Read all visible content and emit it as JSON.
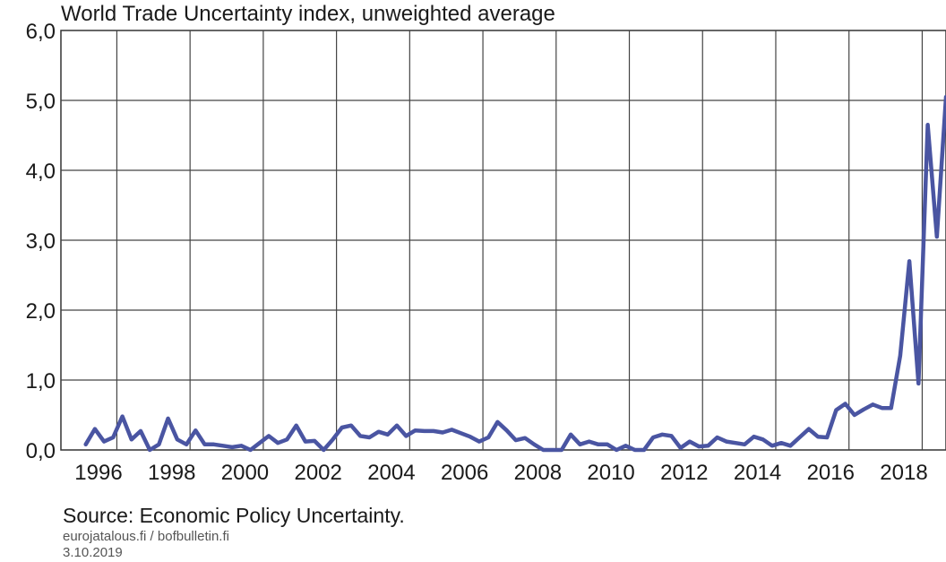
{
  "chart_data": {
    "type": "line",
    "title": "World Trade Uncertainty index, unweighted average",
    "xlabel": "",
    "ylabel": "",
    "ylim": [
      0,
      6
    ],
    "y_ticks": [
      "0,0",
      "1,0",
      "2,0",
      "3,0",
      "4,0",
      "5,0",
      "6,0"
    ],
    "x_ticks": [
      "1996",
      "1998",
      "2000",
      "2002",
      "2004",
      "2006",
      "2008",
      "2010",
      "2012",
      "2014",
      "2016",
      "2018"
    ],
    "grid": true,
    "line_color": "#4a55a2",
    "series": [
      {
        "x": [
          "1996Q1",
          "1996Q2",
          "1996Q3",
          "1996Q4",
          "1997Q1",
          "1997Q2",
          "1997Q3",
          "1997Q4",
          "1998Q1",
          "1998Q2",
          "1998Q3",
          "1998Q4",
          "1999Q1",
          "1999Q2",
          "1999Q3",
          "1999Q4",
          "2000Q1",
          "2000Q2",
          "2000Q3",
          "2000Q4",
          "2001Q1",
          "2001Q2",
          "2001Q3",
          "2001Q4",
          "2002Q1",
          "2002Q2",
          "2002Q3",
          "2002Q4",
          "2003Q1",
          "2003Q2",
          "2003Q3",
          "2003Q4",
          "2004Q1",
          "2004Q2",
          "2004Q3",
          "2004Q4",
          "2005Q1",
          "2005Q2",
          "2005Q3",
          "2005Q4",
          "2006Q1",
          "2006Q2",
          "2006Q3",
          "2006Q4",
          "2007Q1",
          "2007Q2",
          "2007Q3",
          "2007Q4",
          "2008Q1",
          "2008Q2",
          "2008Q3",
          "2008Q4",
          "2009Q1",
          "2009Q2",
          "2009Q3",
          "2009Q4",
          "2010Q1",
          "2010Q2",
          "2010Q3",
          "2010Q4",
          "2011Q1",
          "2011Q2",
          "2011Q3",
          "2011Q4",
          "2012Q1",
          "2012Q2",
          "2012Q3",
          "2012Q4",
          "2013Q1",
          "2013Q2",
          "2013Q3",
          "2013Q4",
          "2014Q1",
          "2014Q2",
          "2014Q3",
          "2014Q4",
          "2015Q1",
          "2015Q2",
          "2015Q3",
          "2015Q4",
          "2016Q1",
          "2016Q2",
          "2016Q3",
          "2016Q4",
          "2017Q1",
          "2017Q2",
          "2017Q3",
          "2017Q4",
          "2018Q1",
          "2018Q2",
          "2018Q3",
          "2018Q4",
          "2019Q1",
          "2019Q2",
          "2019Q3"
        ],
        "values": [
          0.08,
          0.3,
          0.12,
          0.18,
          0.48,
          0.15,
          0.27,
          0.0,
          0.08,
          0.45,
          0.15,
          0.08,
          0.28,
          0.08,
          0.08,
          0.06,
          0.04,
          0.06,
          0.0,
          0.1,
          0.2,
          0.1,
          0.15,
          0.35,
          0.12,
          0.13,
          0.0,
          0.15,
          0.32,
          0.35,
          0.2,
          0.18,
          0.26,
          0.22,
          0.35,
          0.2,
          0.28,
          0.27,
          0.27,
          0.25,
          0.29,
          0.24,
          0.19,
          0.12,
          0.18,
          0.4,
          0.28,
          0.14,
          0.17,
          0.08,
          0.0,
          0.0,
          0.0,
          0.22,
          0.08,
          0.12,
          0.08,
          0.08,
          0.0,
          0.06,
          0.0,
          0.0,
          0.18,
          0.22,
          0.2,
          0.03,
          0.12,
          0.05,
          0.06,
          0.18,
          0.12,
          0.1,
          0.08,
          0.19,
          0.15,
          0.06,
          0.1,
          0.06,
          0.18,
          0.3,
          0.19,
          0.18,
          0.57,
          0.66,
          0.5,
          0.58,
          0.65,
          0.6,
          0.6,
          1.35,
          2.7,
          0.95,
          4.65,
          3.05,
          5.05
        ]
      }
    ]
  },
  "footer": {
    "source": "Source: Economic Policy Uncertainty.",
    "credit": "eurojatalous.fi / bofbulletin.fi",
    "date": "3.10.2019"
  }
}
